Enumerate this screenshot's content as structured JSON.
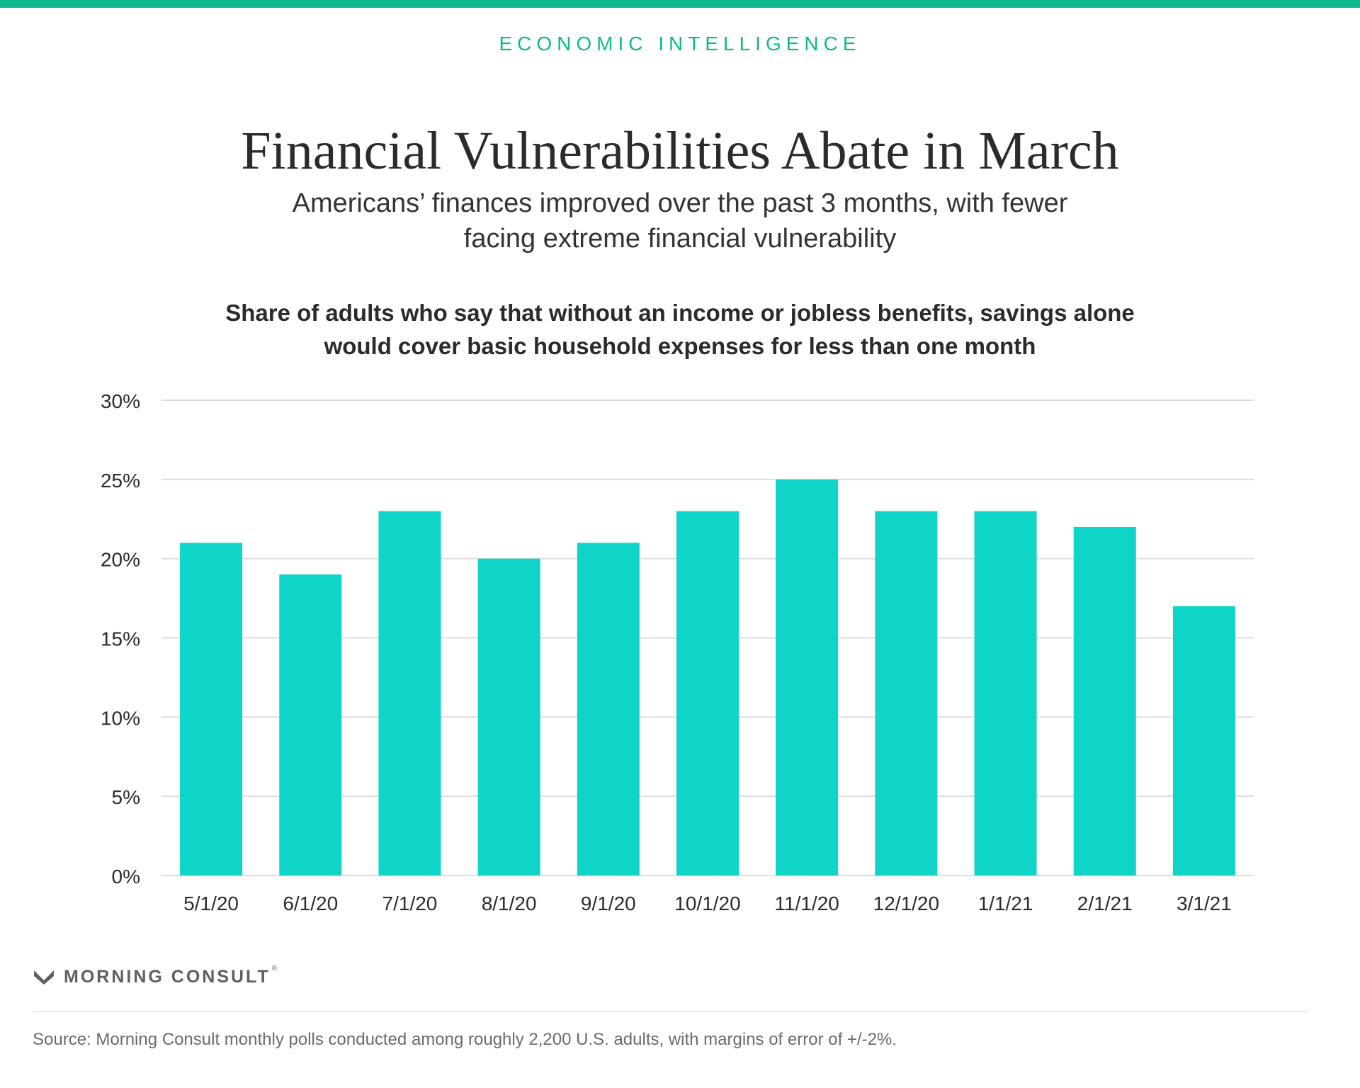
{
  "header": {
    "kicker": "ECONOMIC INTELLIGENCE",
    "title": "Financial Vulnerabilities Abate in March",
    "subtitle": "Americans’ finances improved over the past 3 months, with fewer facing extreme financial vulnerability"
  },
  "colors": {
    "accent": "#0db98c",
    "bar": "#0fd5c8",
    "grid": "#dedede",
    "axis_text": "#2b2b2b"
  },
  "chart_data": {
    "type": "bar",
    "title": "Share of adults who say that without an income or jobless benefits, savings alone would cover basic household expenses for less than one month",
    "xlabel": "",
    "ylabel": "",
    "categories": [
      "5/1/20",
      "6/1/20",
      "7/1/20",
      "8/1/20",
      "9/1/20",
      "10/1/20",
      "11/1/20",
      "12/1/20",
      "1/1/21",
      "2/1/21",
      "3/1/21"
    ],
    "values": [
      21,
      19,
      23,
      20,
      21,
      23,
      25,
      23,
      23,
      22,
      17
    ],
    "ylim": [
      0,
      30
    ],
    "yticks": [
      0,
      5,
      10,
      15,
      20,
      25,
      30
    ],
    "ytick_labels": [
      "0%",
      "5%",
      "10%",
      "15%",
      "20%",
      "25%",
      "30%"
    ],
    "grid": true,
    "legend": "none"
  },
  "footer": {
    "brand": "MORNING CONSULT",
    "brand_mark": "morning-consult-logo-icon",
    "source": "Source: Morning Consult monthly polls conducted among roughly 2,200 U.S. adults, with margins of error of +/-2%."
  }
}
